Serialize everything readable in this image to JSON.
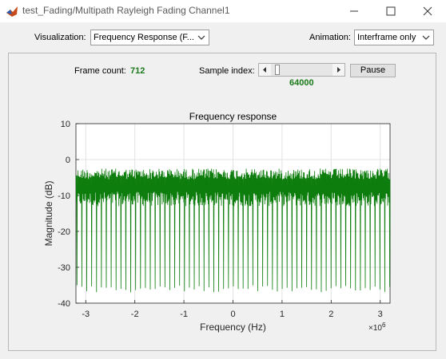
{
  "window": {
    "title": "test_Fading/Multipath Rayleigh Fading Channel1"
  },
  "toolbar": {
    "visualization_label": "Visualization:",
    "visualization_value": "Frequency Response (F...",
    "animation_label": "Animation:",
    "animation_value": "Interframe only"
  },
  "status": {
    "frame_count_label": "Frame count:",
    "frame_count_value": "712",
    "sample_index_label": "Sample index:",
    "sample_index_value": "64000",
    "pause_label": "Pause",
    "slider_position": 0.05
  },
  "colors": {
    "trace": "#0d7d0d",
    "value_text": "#1a7a1a"
  },
  "chart_data": {
    "type": "line",
    "title": "Frequency response",
    "xlabel": "Frequency (Hz)",
    "ylabel": "Magnitude (dB)",
    "x_multiplier_label": "×10",
    "x_multiplier_exp": "6",
    "xlim": [
      -3.2,
      3.2
    ],
    "ylim": [
      -40,
      10
    ],
    "xticks": [
      -3,
      -2,
      -1,
      0,
      1,
      2,
      3
    ],
    "yticks": [
      10,
      0,
      -10,
      -20,
      -30,
      -40
    ],
    "grid": true,
    "series": [
      {
        "description": "dense frequency-selective fading response, mostly between -3 and -13 dB with periodic deep nulls to about -37 dB",
        "upper_db": -2.5,
        "lower_db": -13,
        "null_db": -37,
        "num_nulls": 64
      }
    ]
  }
}
